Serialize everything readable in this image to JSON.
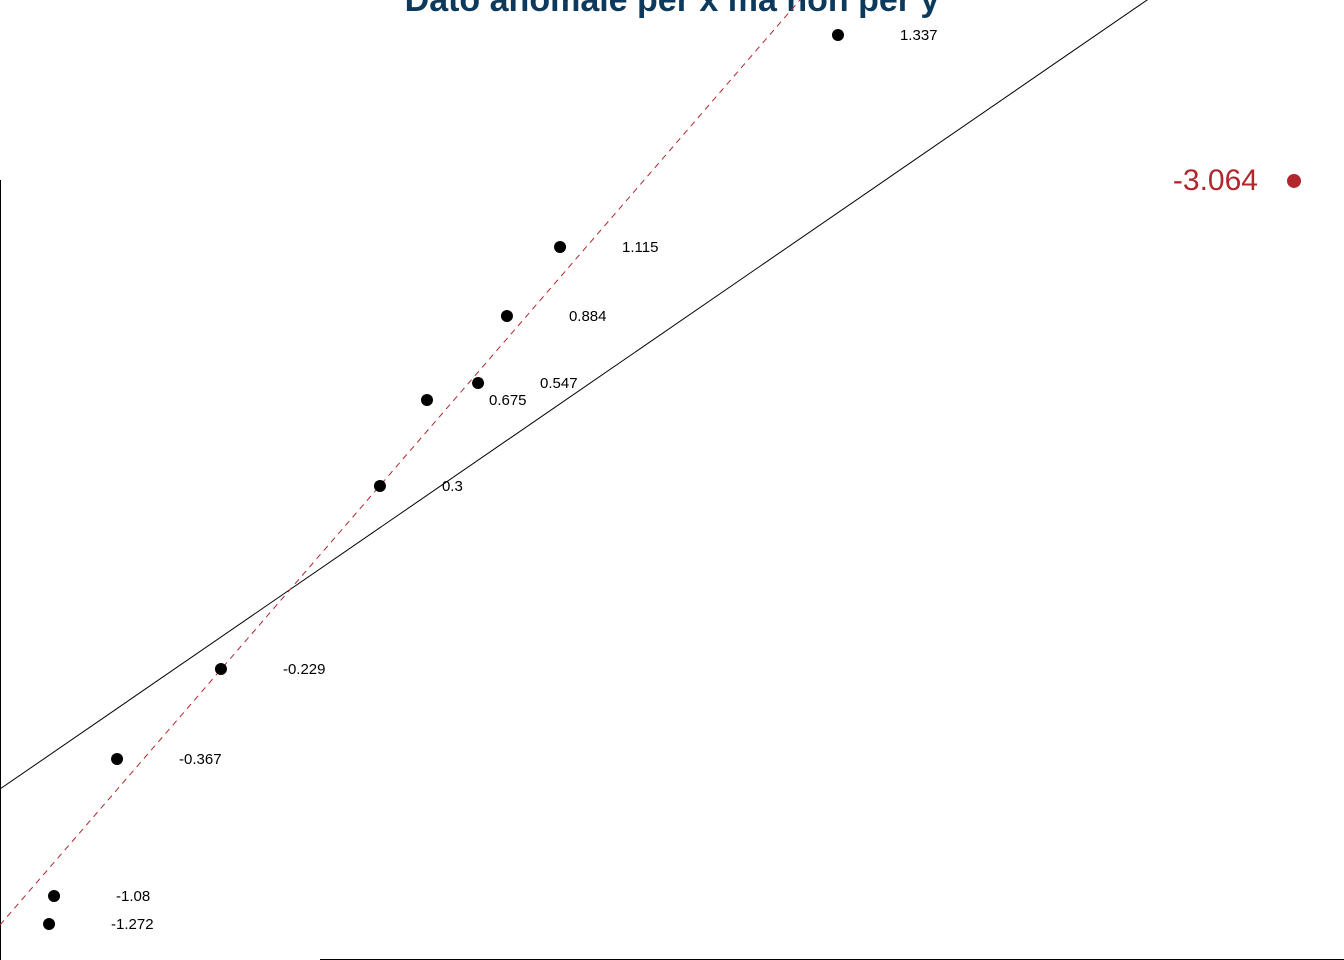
{
  "chart_data": {
    "type": "scatter",
    "title": "Dato anomale per x ma non per y",
    "x": [
      62.35,
      41.67,
      37.72,
      35.57,
      31.77,
      28.27,
      16.44,
      8.71,
      4.02,
      3.65
    ],
    "y": [
      96.35,
      74.27,
      67.08,
      60.1,
      58.33,
      49.38,
      30.31,
      20.94,
      6.67,
      3.75
    ],
    "labels": [
      1.337,
      1.115,
      0.884,
      0.547,
      0.675,
      0.3,
      -0.229,
      -0.367,
      -1.08,
      -1.272
    ],
    "color": "#000000",
    "outlier": {
      "x": 96.28,
      "y": 81.15,
      "label": -3.064,
      "color": "#b0282e"
    },
    "lines": [
      {
        "intercept": 17.81,
        "slope": 0.963,
        "color": "#000000",
        "dashed": false
      },
      {
        "intercept": 3.65,
        "slope": 1.619,
        "color": "#b0282e",
        "dashed": true
      }
    ],
    "xlim": [
      0,
      100
    ],
    "ylim": [
      0,
      100
    ]
  }
}
